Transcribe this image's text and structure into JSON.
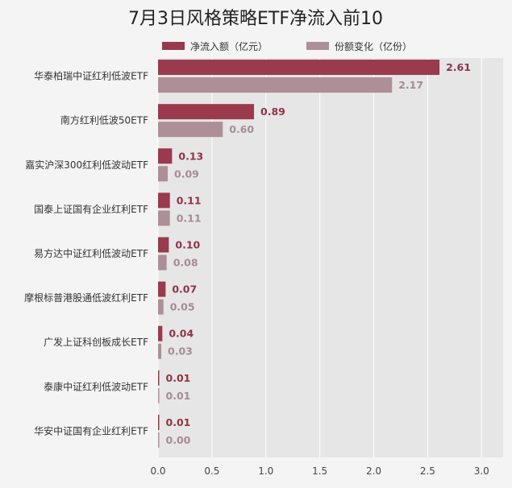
{
  "chart_data": {
    "type": "bar",
    "orientation": "horizontal",
    "title": "7月3日风格策略ETF净流入前10",
    "categories": [
      "华泰柏瑞中证红利低波ETF",
      "南方红利低波50ETF",
      "嘉实沪深300红利低波动ETF",
      "国泰上证国有企业红利ETF",
      "易方达中证红利低波动ETF",
      "摩根标普港股通低波红利ETF",
      "广发上证科创板成长ETF",
      "泰康中证红利低波动ETF",
      "华安中证国有企业红利ETF"
    ],
    "series": [
      {
        "name": "净流入额（亿元）",
        "color": "#993a4d",
        "values": [
          2.61,
          0.89,
          0.13,
          0.11,
          0.1,
          0.07,
          0.04,
          0.01,
          0.01
        ],
        "labels": [
          "2.61",
          "0.89",
          "0.13",
          "0.11",
          "0.10",
          "0.07",
          "0.04",
          "0.01",
          "0.01"
        ]
      },
      {
        "name": "份额变化（亿份）",
        "color": "#ad8f98",
        "values": [
          2.17,
          0.6,
          0.09,
          0.11,
          0.08,
          0.05,
          0.03,
          0.01,
          0.0
        ],
        "labels": [
          "2.17",
          "0.60",
          "0.09",
          "0.11",
          "0.08",
          "0.05",
          "0.03",
          "0.01",
          "0.00"
        ]
      }
    ],
    "xlim": [
      0,
      3.2
    ],
    "xticks": [
      0,
      0.5,
      1,
      1.5,
      2,
      2.5,
      3
    ],
    "xtick_labels": [
      "0.0",
      "0.5",
      "1.0",
      "1.5",
      "2.0",
      "2.5",
      "3.0"
    ],
    "xlabel": "",
    "ylabel": "",
    "grid": true,
    "legend_position": "top",
    "plot_background": "#e6e6e6",
    "page_background": "#f4f4f4"
  }
}
